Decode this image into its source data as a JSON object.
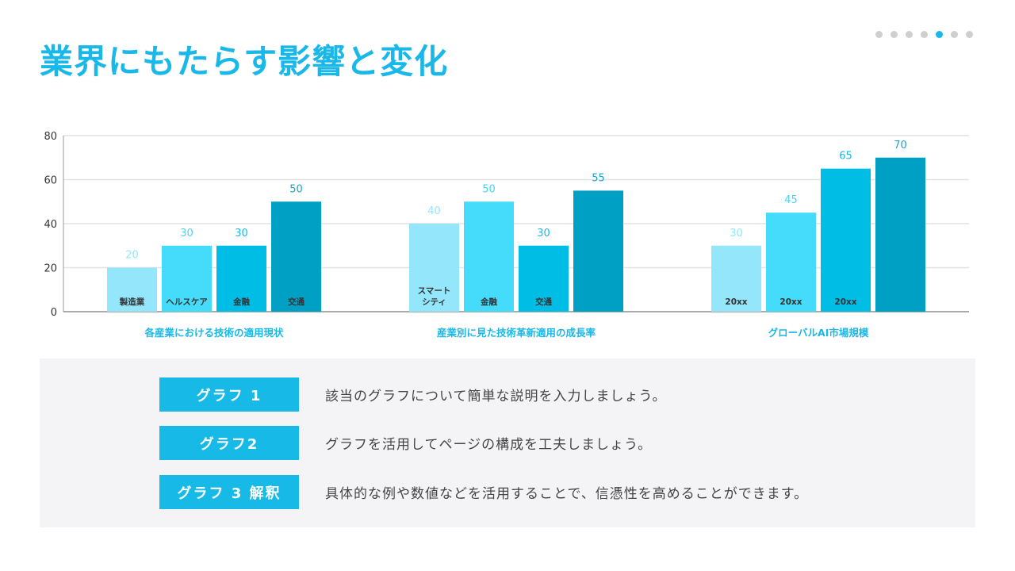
{
  "title": "業界にもたらす影響と変化",
  "pagination": {
    "total": 7,
    "active": 5,
    "active_color": "#1ab8e8"
  },
  "chart_data": {
    "type": "bar",
    "ylim": [
      0,
      80
    ],
    "yticks": [
      0,
      20,
      40,
      60,
      80
    ],
    "grid": true,
    "series_colors": [
      "#94e6fb",
      "#45dcfb",
      "#00bde6",
      "#009fc4"
    ],
    "groups": [
      {
        "label": "各産業における技術の適用現状",
        "bars": [
          {
            "category": "製造業",
            "value": 20
          },
          {
            "category": "ヘルスケア",
            "value": 30
          },
          {
            "category": "金融",
            "value": 30
          },
          {
            "category": "交通",
            "value": 50
          }
        ]
      },
      {
        "label": "産業別に見た技術革新適用の成長率",
        "bars": [
          {
            "category": "スマート\nシティ",
            "value": 40
          },
          {
            "category": "金融",
            "value": 50
          },
          {
            "category": "交通",
            "value": 30
          },
          {
            "category": "",
            "value": 55
          }
        ]
      },
      {
        "label": "グローバルAI市場規模",
        "bars": [
          {
            "category": "20xx",
            "value": 30
          },
          {
            "category": "20xx",
            "value": 45
          },
          {
            "category": "20xx",
            "value": 65
          },
          {
            "category": "",
            "value": 70
          }
        ]
      }
    ]
  },
  "notes": [
    {
      "badge": "グラフ 1",
      "text": "該当のグラフについて簡単な説明を入力しましょう。"
    },
    {
      "badge": "グラフ2",
      "text": "グラフを活用してページの構成を工夫しましょう。"
    },
    {
      "badge": "グラフ 3 解釈",
      "text": "具体的な例や数値などを活用することで、信憑性を高めることができます。"
    }
  ]
}
